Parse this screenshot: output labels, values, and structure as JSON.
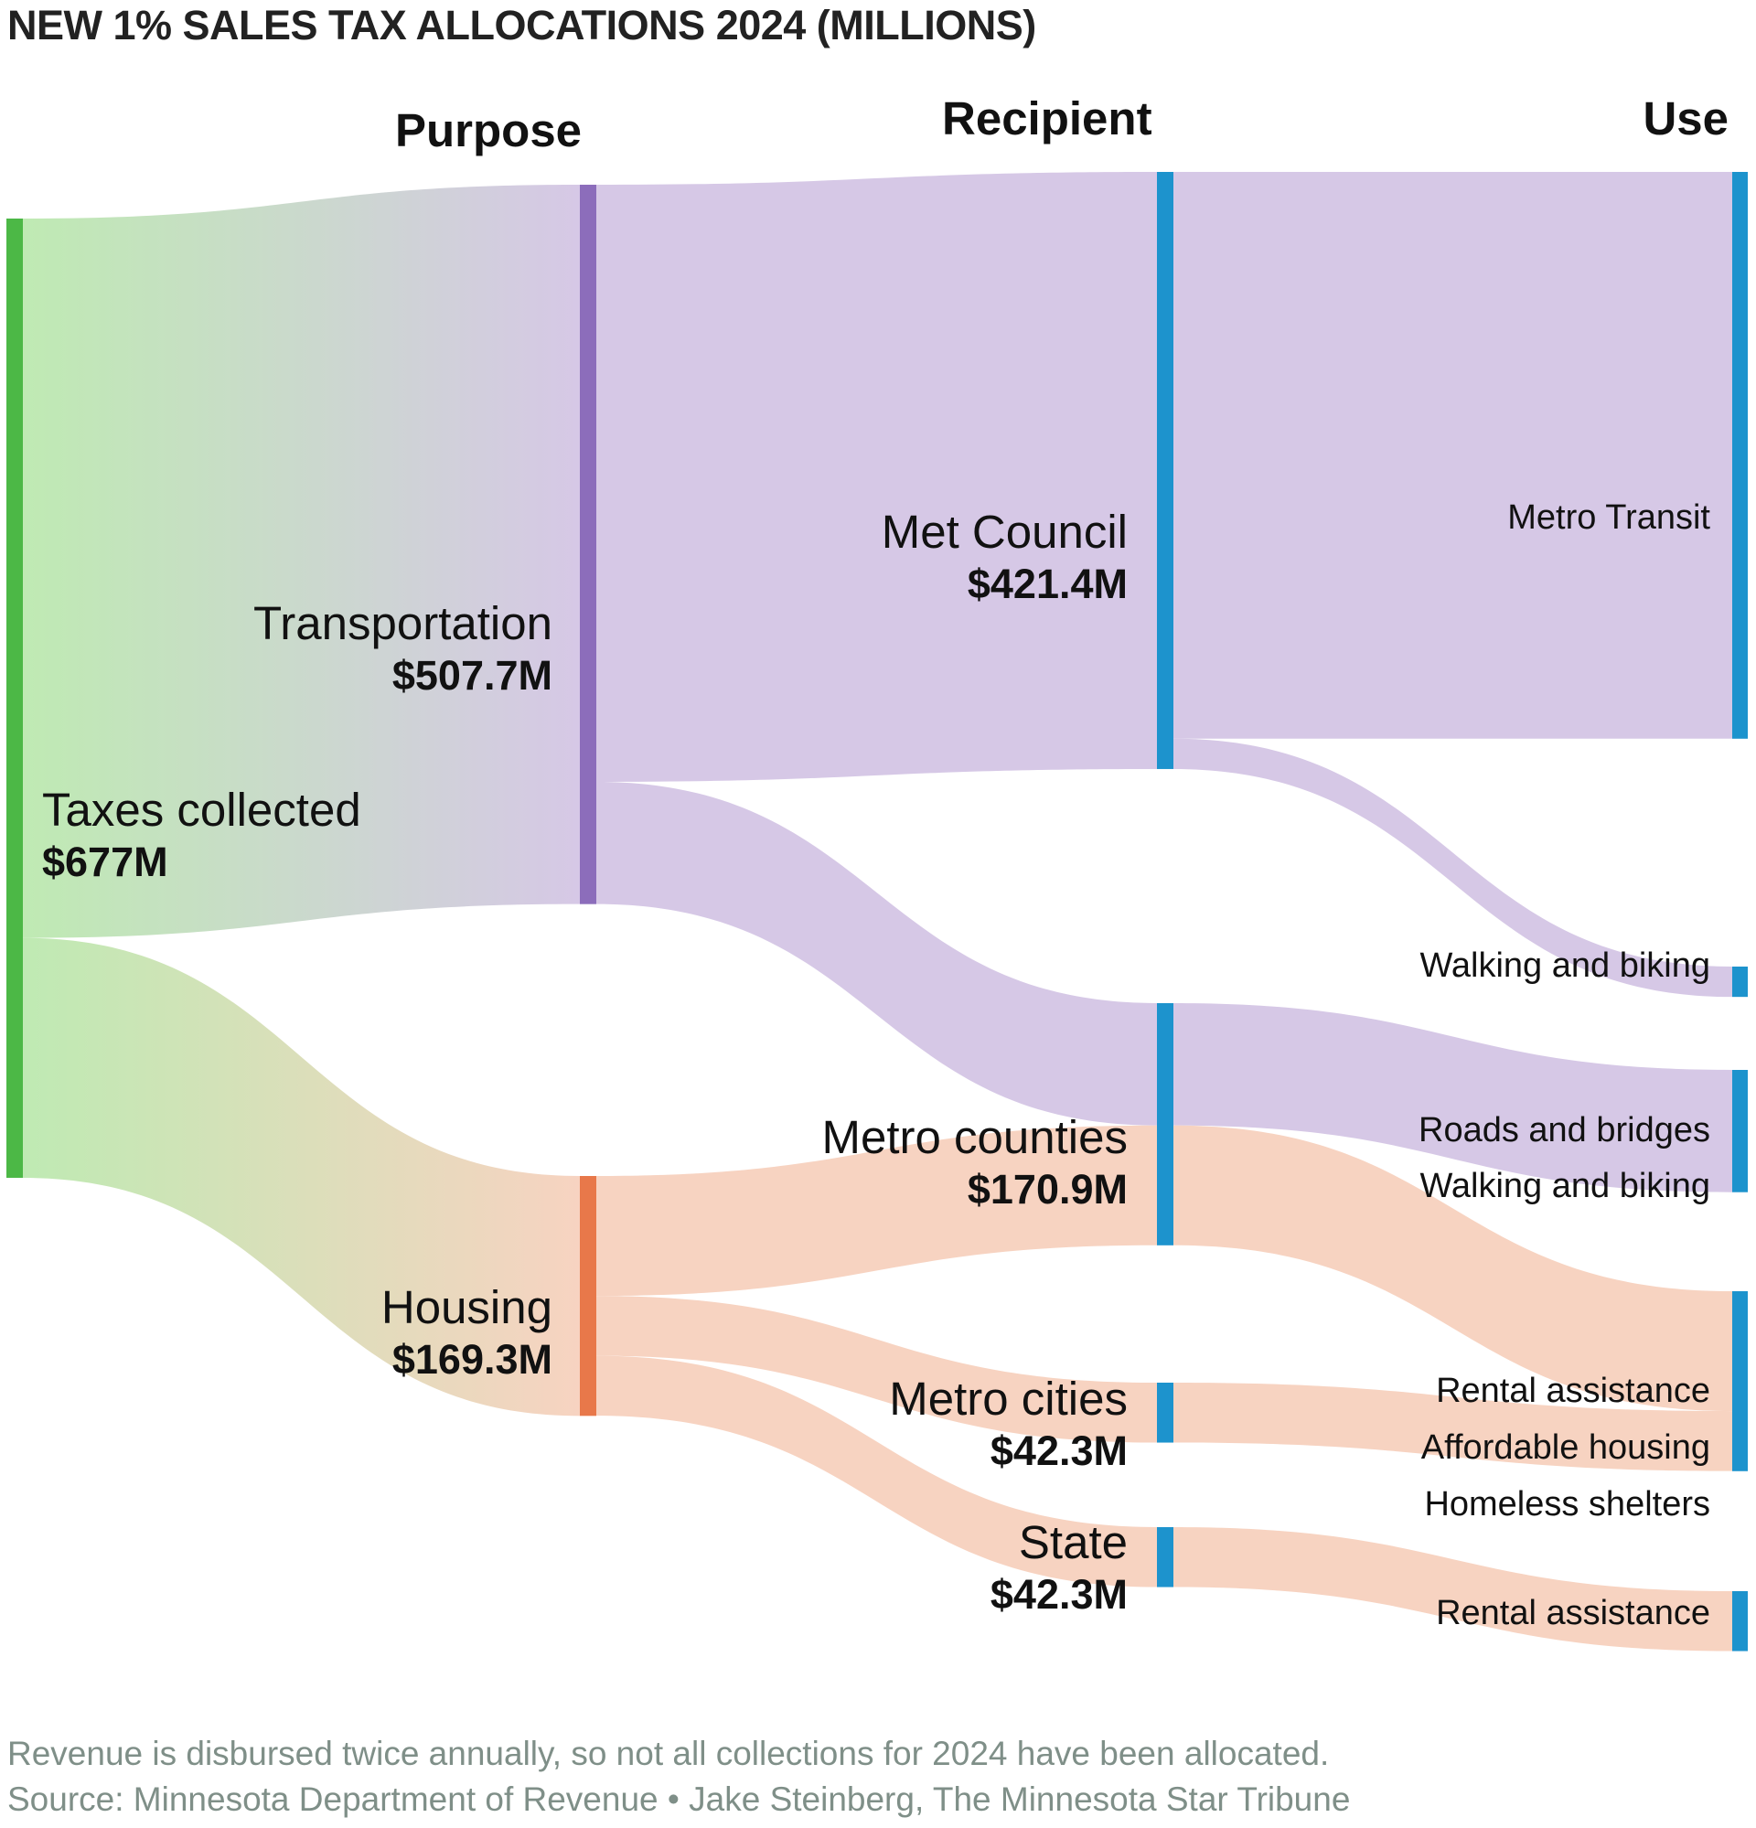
{
  "title": "NEW 1% SALES TAX ALLOCATIONS 2024 (MILLIONS)",
  "columns": {
    "purpose": "Purpose",
    "recipient": "Recipient",
    "use": "Use"
  },
  "colors": {
    "source_node": "#4cb846",
    "transportation_node": "#8c6dbb",
    "housing_node": "#e8784a",
    "recipient_node": "#1d93cd",
    "use_node": "#1d93cd",
    "transport_flow": "#d6c8e6",
    "housing_flow": "#f7d3c1",
    "source_gradient_start": "#bfeab3",
    "footnote_text": "#7f8f88"
  },
  "chart_data": {
    "type": "sankey",
    "title": "NEW 1% SALES TAX ALLOCATIONS 2024 (MILLIONS)",
    "units": "millions of dollars",
    "nodes": {
      "source": {
        "name": "Taxes collected",
        "value_label": "$677M",
        "value": 677
      },
      "purposes": [
        {
          "name": "Transportation",
          "value_label": "$507.7M",
          "value": 507.7
        },
        {
          "name": "Housing",
          "value_label": "$169.3M",
          "value": 169.3
        }
      ],
      "recipients": [
        {
          "name": "Met Council",
          "value_label": "$421.4M",
          "value": 421.4
        },
        {
          "name": "Metro counties",
          "value_label": "$170.9M",
          "value": 170.9
        },
        {
          "name": "Metro cities",
          "value_label": "$42.3M",
          "value": 42.3
        },
        {
          "name": "State",
          "value_label": "$42.3M",
          "value": 42.3
        }
      ],
      "uses": [
        {
          "labels": [
            "Metro Transit"
          ],
          "value": 400
        },
        {
          "labels": [
            "Walking and biking"
          ],
          "value": 21.4
        },
        {
          "labels": [
            "Roads and bridges",
            "Walking and biking"
          ],
          "value": 86.3
        },
        {
          "labels": [
            "Rental assistance",
            "Affordable housing",
            "Homeless shelters"
          ],
          "value": 127
        },
        {
          "labels": [
            "Rental assistance"
          ],
          "value": 42.3
        }
      ]
    },
    "links": [
      {
        "from": "Taxes collected",
        "to": "Transportation",
        "value": 507.7
      },
      {
        "from": "Taxes collected",
        "to": "Housing",
        "value": 169.3
      },
      {
        "from": "Transportation",
        "to": "Met Council",
        "value": 421.4
      },
      {
        "from": "Transportation",
        "to": "Metro counties",
        "value": 86.3
      },
      {
        "from": "Housing",
        "to": "Metro counties",
        "value": 84.6
      },
      {
        "from": "Housing",
        "to": "Metro cities",
        "value": 42.3
      },
      {
        "from": "Housing",
        "to": "State",
        "value": 42.3
      },
      {
        "from": "Met Council",
        "to": "Metro Transit",
        "value": 400
      },
      {
        "from": "Met Council",
        "to": "Walking and biking",
        "value": 21.4
      },
      {
        "from": "Metro counties",
        "to": "Roads and bridges / Walking and biking",
        "value": 86.3
      },
      {
        "from": "Metro counties",
        "to": "Rental assistance / Affordable housing / Homeless shelters",
        "value": 84.6
      },
      {
        "from": "Metro cities",
        "to": "Rental assistance / Affordable housing / Homeless shelters",
        "value": 42.3
      },
      {
        "from": "State",
        "to": "Rental assistance",
        "value": 42.3
      }
    ]
  },
  "footnotes": {
    "note": "Revenue is disbursed twice annually, so not all collections for 2024 have been allocated.",
    "source": "Source: Minnesota Department of Revenue • Jake Steinberg, The Minnesota Star Tribune"
  }
}
